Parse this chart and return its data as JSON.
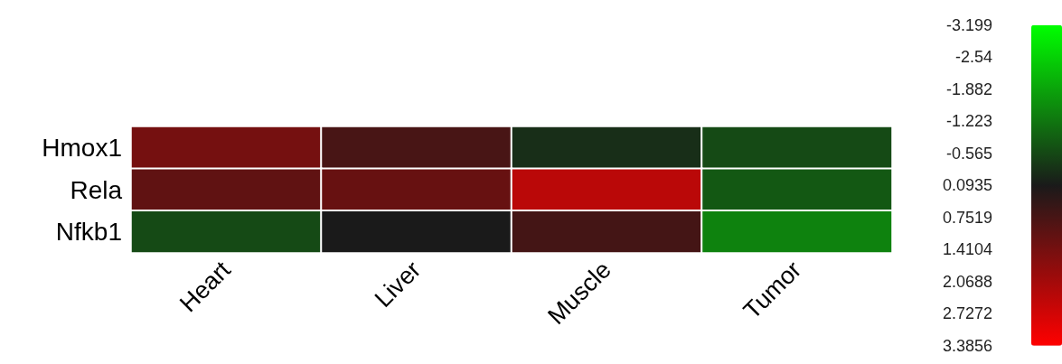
{
  "chart_data": {
    "type": "heatmap",
    "categories": [
      "Heart",
      "Liver",
      "Muscle",
      "Tumor"
    ],
    "y_categories": [
      "Hmox1",
      "Rela",
      "Nfkb1"
    ],
    "cells": [
      [
        1.4,
        0.75,
        -0.2,
        -0.6
      ],
      [
        1.1,
        1.2,
        2.4,
        -0.8
      ],
      [
        -0.6,
        0.09,
        0.7,
        -1.4
      ]
    ],
    "clim": [
      -3.199,
      3.3856
    ],
    "cticks": [
      -3.199,
      -2.54,
      -1.882,
      -1.223,
      -0.565,
      0.0935,
      0.7519,
      1.4104,
      2.0688,
      2.7272,
      3.3856
    ]
  }
}
